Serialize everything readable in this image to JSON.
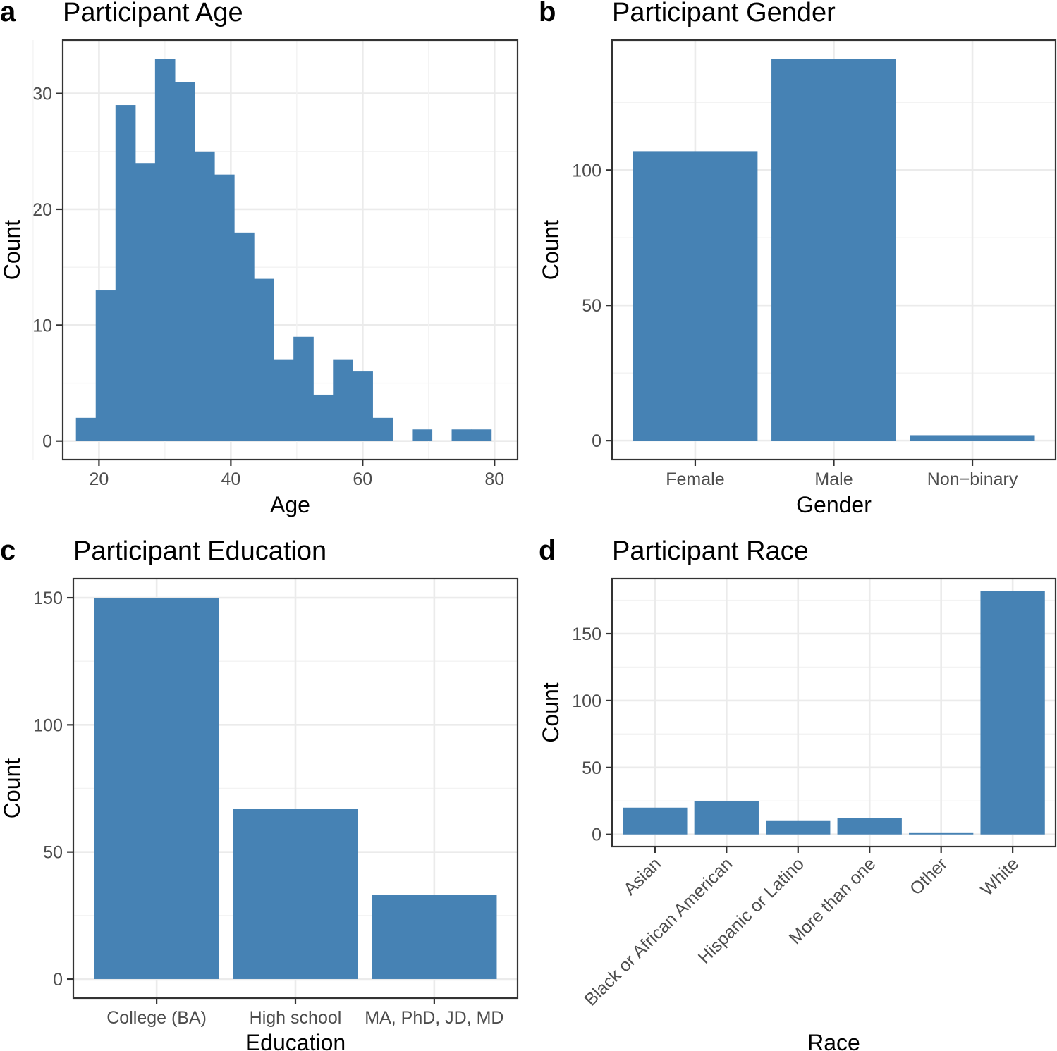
{
  "chart_data": [
    {
      "id": "a",
      "letter": "a",
      "type": "bar",
      "subtype": "histogram",
      "title": "Participant Age",
      "xlabel": "Age",
      "ylabel": "Count",
      "xlim": [
        14.5,
        83.5
      ],
      "ylim": [
        -1.6,
        34.6
      ],
      "xticks": [
        20,
        40,
        60,
        80
      ],
      "yticks": [
        0,
        10,
        20,
        30
      ],
      "bin_width": 3,
      "bins": [
        {
          "start": 16.5,
          "count": 2
        },
        {
          "start": 19.5,
          "count": 13
        },
        {
          "start": 22.5,
          "count": 29
        },
        {
          "start": 25.5,
          "count": 24
        },
        {
          "start": 28.5,
          "count": 33
        },
        {
          "start": 31.5,
          "count": 31
        },
        {
          "start": 34.5,
          "count": 25
        },
        {
          "start": 37.5,
          "count": 23
        },
        {
          "start": 40.5,
          "count": 18
        },
        {
          "start": 43.5,
          "count": 14
        },
        {
          "start": 46.5,
          "count": 7
        },
        {
          "start": 49.5,
          "count": 9
        },
        {
          "start": 52.5,
          "count": 4
        },
        {
          "start": 55.5,
          "count": 7
        },
        {
          "start": 58.5,
          "count": 6
        },
        {
          "start": 61.5,
          "count": 2
        },
        {
          "start": 64.5,
          "count": 0
        },
        {
          "start": 67.5,
          "count": 1
        },
        {
          "start": 70.5,
          "count": 0
        },
        {
          "start": 73.5,
          "count": 1
        },
        {
          "start": 76.5,
          "count": 1
        }
      ],
      "color": "#4682b4"
    },
    {
      "id": "b",
      "letter": "b",
      "type": "bar",
      "title": "Participant Gender",
      "xlabel": "Gender",
      "ylabel": "Count",
      "categories": [
        "Female",
        "Male",
        "Non−binary"
      ],
      "values": [
        107,
        141,
        2
      ],
      "ylim": [
        -7,
        148
      ],
      "yticks": [
        0,
        50,
        100
      ],
      "color": "#4682b4"
    },
    {
      "id": "c",
      "letter": "c",
      "type": "bar",
      "title": "Participant Education",
      "xlabel": "Education",
      "ylabel": "Count",
      "categories": [
        "College (BA)",
        "High school",
        "MA, PhD, JD, MD"
      ],
      "values": [
        150,
        67,
        33
      ],
      "ylim": [
        -7.5,
        157.5
      ],
      "yticks": [
        0,
        50,
        100,
        150
      ],
      "color": "#4682b4"
    },
    {
      "id": "d",
      "letter": "d",
      "type": "bar",
      "title": "Participant Race",
      "xlabel": "Race",
      "ylabel": "Count",
      "categories": [
        "Asian",
        "Black or African American",
        "Hispanic or Latino",
        "More than one",
        "Other",
        "White"
      ],
      "values": [
        20,
        25,
        10,
        12,
        1,
        182
      ],
      "ylim": [
        -9.1,
        191.1
      ],
      "yticks": [
        0,
        50,
        100,
        150
      ],
      "rotate_labels": true,
      "color": "#4682b4"
    }
  ]
}
